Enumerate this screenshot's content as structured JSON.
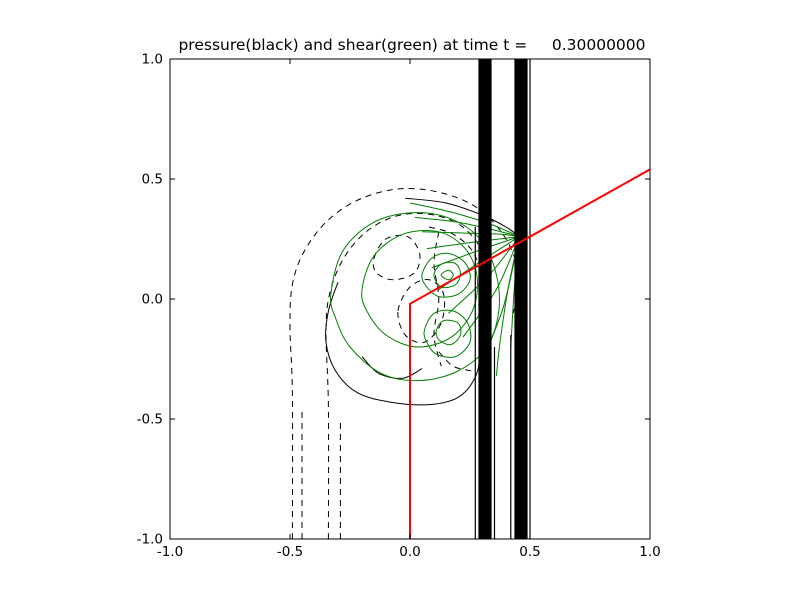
{
  "figure": {
    "background": "#ffffff"
  },
  "chart_data": {
    "type": "contour",
    "title": "pressure(black) and shear(green) at time t =     0.30000000",
    "xlabel": "",
    "ylabel": "",
    "xlim": [
      -1.0,
      1.0
    ],
    "ylim": [
      -1.0,
      1.0
    ],
    "xtick_values": [
      -1.0,
      -0.5,
      0.0,
      0.5,
      1.0
    ],
    "xtick_labels": [
      "-1.0",
      "-0.5",
      "0.0",
      "0.5",
      "1.0"
    ],
    "ytick_values": [
      -1.0,
      -0.5,
      0.0,
      0.5,
      1.0
    ],
    "ytick_labels": [
      "-1.0",
      "-0.5",
      "0.0",
      "0.5",
      "1.0"
    ],
    "grid": false,
    "legend": "none",
    "series": [
      {
        "name": "pressure",
        "color": "#000000",
        "style": "solid and dashed black contour lines"
      },
      {
        "name": "shear",
        "color": "#008000",
        "style": "solid green contour lines"
      }
    ],
    "interface_line": {
      "name": "red-interface-line",
      "color": "#ff0000",
      "width": 2,
      "points": [
        [
          0.0,
          -1.0
        ],
        [
          0.0,
          -0.02
        ],
        [
          1.0,
          0.54
        ]
      ]
    },
    "shock_bands": [
      {
        "x0": 0.285,
        "x1": 0.34,
        "y0": -1.0,
        "y1": 1.0
      },
      {
        "x0": 0.435,
        "x1": 0.49,
        "y0": -1.0,
        "y1": 1.0
      }
    ],
    "shock_lines": [
      {
        "x": 0.272,
        "y0": -1.0,
        "y1": 0.3
      },
      {
        "x": 0.352,
        "y0": -1.0,
        "y1": -0.2
      },
      {
        "x": 0.42,
        "y0": -1.0,
        "y1": -0.15
      },
      {
        "x": 0.5,
        "y0": -1.0,
        "y1": 1.0
      }
    ],
    "contours": [
      {
        "series": "pressure",
        "dash": true,
        "closed": false,
        "pts": [
          [
            -0.49,
            -1.0
          ],
          [
            -0.49,
            -0.4
          ],
          [
            -0.5,
            -0.12
          ],
          [
            -0.49,
            0.06
          ],
          [
            -0.44,
            0.2
          ],
          [
            -0.34,
            0.33
          ],
          [
            -0.2,
            0.42
          ],
          [
            -0.03,
            0.46
          ],
          [
            0.14,
            0.44
          ],
          [
            0.28,
            0.38
          ],
          [
            0.38,
            0.28
          ],
          [
            0.44,
            0.16
          ],
          [
            0.45,
            0.04
          ],
          [
            0.43,
            -0.06
          ]
        ]
      },
      {
        "series": "pressure",
        "dash": true,
        "closed": false,
        "pts": [
          [
            -0.45,
            -1.0
          ],
          [
            -0.45,
            -0.45
          ]
        ]
      },
      {
        "series": "pressure",
        "dash": true,
        "closed": false,
        "pts": [
          [
            -0.34,
            -1.0
          ],
          [
            -0.34,
            -0.45
          ],
          [
            -0.35,
            -0.12
          ],
          [
            -0.33,
            0.04
          ],
          [
            -0.27,
            0.18
          ],
          [
            -0.17,
            0.29
          ],
          [
            -0.04,
            0.35
          ],
          [
            0.1,
            0.35
          ],
          [
            0.22,
            0.3
          ],
          [
            0.3,
            0.2
          ],
          [
            0.33,
            0.08
          ],
          [
            0.32,
            -0.03
          ]
        ]
      },
      {
        "series": "pressure",
        "dash": true,
        "closed": false,
        "pts": [
          [
            -0.29,
            -1.0
          ],
          [
            -0.29,
            -0.5
          ]
        ]
      },
      {
        "series": "pressure",
        "dash": false,
        "closed": false,
        "pts": [
          [
            -0.3,
            0.07
          ],
          [
            -0.34,
            -0.05
          ],
          [
            -0.35,
            -0.18
          ],
          [
            -0.31,
            -0.3
          ],
          [
            -0.22,
            -0.39
          ],
          [
            -0.08,
            -0.43
          ],
          [
            0.08,
            -0.44
          ],
          [
            0.2,
            -0.41
          ],
          [
            0.27,
            -0.33
          ],
          [
            0.295,
            -0.22
          ],
          [
            0.3,
            -0.1
          ]
        ]
      },
      {
        "series": "pressure",
        "dash": false,
        "closed": false,
        "pts": [
          [
            -0.02,
            0.42
          ],
          [
            0.15,
            0.4
          ],
          [
            0.3,
            0.35
          ],
          [
            0.4,
            0.3
          ],
          [
            0.455,
            0.26
          ]
        ]
      },
      {
        "series": "pressure",
        "dash": false,
        "closed": false,
        "pts": [
          [
            -0.2,
            -0.24
          ],
          [
            -0.13,
            -0.31
          ],
          [
            -0.03,
            -0.33
          ],
          [
            0.05,
            -0.29
          ]
        ]
      },
      {
        "series": "pressure",
        "dash": true,
        "closed": true,
        "pts": [
          [
            -0.15,
            0.17
          ],
          [
            -0.1,
            0.25
          ],
          [
            -0.01,
            0.26
          ],
          [
            0.04,
            0.19
          ],
          [
            0.02,
            0.11
          ],
          [
            -0.07,
            0.08
          ],
          [
            -0.14,
            0.11
          ]
        ]
      },
      {
        "series": "pressure",
        "dash": true,
        "closed": true,
        "pts": [
          [
            -0.05,
            -0.05
          ],
          [
            0.0,
            0.05
          ],
          [
            0.08,
            0.08
          ],
          [
            0.14,
            0.02
          ],
          [
            0.13,
            -0.1
          ],
          [
            0.06,
            -0.18
          ],
          [
            -0.02,
            -0.15
          ]
        ]
      },
      {
        "series": "pressure",
        "dash": true,
        "closed": false,
        "pts": [
          [
            0.08,
            0.3
          ],
          [
            0.18,
            0.27
          ],
          [
            0.26,
            0.2
          ],
          [
            0.3,
            0.1
          ]
        ]
      },
      {
        "series": "pressure",
        "dash": true,
        "closed": false,
        "pts": [
          [
            0.12,
            -0.22
          ],
          [
            0.18,
            -0.28
          ],
          [
            0.26,
            -0.3
          ]
        ]
      },
      {
        "series": "pressure",
        "dash": true,
        "closed": false,
        "pts": [
          [
            0.12,
            0.28
          ],
          [
            0.1,
            0.15
          ],
          [
            0.12,
            0.0
          ],
          [
            0.1,
            -0.15
          ],
          [
            0.13,
            -0.28
          ]
        ]
      },
      {
        "series": "shear",
        "dash": false,
        "closed": true,
        "pts": [
          [
            -0.33,
            0.02
          ],
          [
            -0.28,
            0.2
          ],
          [
            -0.15,
            0.32
          ],
          [
            0.02,
            0.36
          ],
          [
            0.18,
            0.33
          ],
          [
            0.3,
            0.24
          ],
          [
            0.36,
            0.1
          ],
          [
            0.37,
            -0.05
          ],
          [
            0.32,
            -0.2
          ],
          [
            0.2,
            -0.3
          ],
          [
            0.04,
            -0.34
          ],
          [
            -0.12,
            -0.31
          ],
          [
            -0.25,
            -0.2
          ],
          [
            -0.31,
            -0.08
          ]
        ]
      },
      {
        "series": "shear",
        "dash": false,
        "closed": true,
        "pts": [
          [
            -0.2,
            0.04
          ],
          [
            -0.15,
            0.18
          ],
          [
            -0.03,
            0.27
          ],
          [
            0.12,
            0.28
          ],
          [
            0.23,
            0.21
          ],
          [
            0.28,
            0.09
          ],
          [
            0.26,
            -0.05
          ],
          [
            0.17,
            -0.16
          ],
          [
            0.03,
            -0.2
          ],
          [
            -0.1,
            -0.15
          ],
          [
            -0.18,
            -0.05
          ]
        ]
      },
      {
        "series": "shear",
        "dash": false,
        "closed": true,
        "pts": [
          [
            0.05,
            0.1
          ],
          [
            0.09,
            0.17
          ],
          [
            0.16,
            0.19
          ],
          [
            0.23,
            0.15
          ],
          [
            0.25,
            0.08
          ],
          [
            0.2,
            0.02
          ],
          [
            0.12,
            0.01
          ],
          [
            0.07,
            0.05
          ]
        ]
      },
      {
        "series": "shear",
        "dash": false,
        "closed": true,
        "pts": [
          [
            0.1,
            0.1
          ],
          [
            0.13,
            0.145
          ],
          [
            0.185,
            0.15
          ],
          [
            0.21,
            0.11
          ],
          [
            0.19,
            0.06
          ],
          [
            0.13,
            0.05
          ]
        ]
      },
      {
        "series": "shear",
        "dash": false,
        "closed": true,
        "pts": [
          [
            0.13,
            0.1
          ],
          [
            0.16,
            0.12
          ],
          [
            0.18,
            0.1
          ],
          [
            0.16,
            0.08
          ]
        ]
      },
      {
        "series": "shear",
        "dash": false,
        "closed": true,
        "pts": [
          [
            0.06,
            -0.13
          ],
          [
            0.1,
            -0.06
          ],
          [
            0.18,
            -0.05
          ],
          [
            0.24,
            -0.1
          ],
          [
            0.25,
            -0.18
          ],
          [
            0.19,
            -0.24
          ],
          [
            0.11,
            -0.23
          ],
          [
            0.07,
            -0.18
          ]
        ]
      },
      {
        "series": "shear",
        "dash": false,
        "closed": true,
        "pts": [
          [
            0.11,
            -0.13
          ],
          [
            0.14,
            -0.09
          ],
          [
            0.2,
            -0.1
          ],
          [
            0.21,
            -0.15
          ],
          [
            0.17,
            -0.19
          ],
          [
            0.12,
            -0.17
          ]
        ]
      },
      {
        "series": "shear",
        "dash": false,
        "closed": false,
        "pts": [
          [
            0.0,
            0.4
          ],
          [
            0.18,
            0.36
          ],
          [
            0.34,
            0.31
          ],
          [
            0.455,
            0.26
          ]
        ]
      },
      {
        "series": "shear",
        "dash": false,
        "closed": false,
        "pts": [
          [
            0.02,
            0.34
          ],
          [
            0.2,
            0.32
          ],
          [
            0.36,
            0.285
          ],
          [
            0.455,
            0.26
          ]
        ]
      },
      {
        "series": "shear",
        "dash": false,
        "closed": false,
        "pts": [
          [
            0.05,
            0.28
          ],
          [
            0.22,
            0.275
          ],
          [
            0.38,
            0.27
          ],
          [
            0.455,
            0.26
          ]
        ]
      },
      {
        "series": "shear",
        "dash": false,
        "closed": false,
        "pts": [
          [
            0.07,
            0.21
          ],
          [
            0.25,
            0.235
          ],
          [
            0.455,
            0.26
          ]
        ]
      },
      {
        "series": "shear",
        "dash": false,
        "closed": false,
        "pts": [
          [
            0.09,
            0.13
          ],
          [
            0.28,
            0.2
          ],
          [
            0.455,
            0.26
          ]
        ]
      },
      {
        "series": "shear",
        "dash": false,
        "closed": false,
        "pts": [
          [
            0.12,
            0.04
          ],
          [
            0.3,
            0.16
          ],
          [
            0.455,
            0.26
          ]
        ]
      },
      {
        "series": "shear",
        "dash": false,
        "closed": false,
        "pts": [
          [
            0.16,
            -0.06
          ],
          [
            0.33,
            0.1
          ],
          [
            0.455,
            0.26
          ]
        ]
      },
      {
        "series": "shear",
        "dash": false,
        "closed": false,
        "pts": [
          [
            0.22,
            -0.16
          ],
          [
            0.36,
            0.04
          ],
          [
            0.455,
            0.26
          ]
        ]
      },
      {
        "series": "shear",
        "dash": false,
        "closed": false,
        "pts": [
          [
            0.3,
            -0.26
          ],
          [
            0.39,
            -0.03
          ],
          [
            0.455,
            0.26
          ]
        ]
      },
      {
        "series": "shear",
        "dash": false,
        "closed": false,
        "pts": [
          [
            0.455,
            0.26
          ],
          [
            0.41,
            0.05
          ],
          [
            0.375,
            -0.18
          ],
          [
            0.36,
            -0.32
          ]
        ]
      },
      {
        "series": "shear",
        "dash": false,
        "closed": false,
        "pts": [
          [
            0.455,
            0.26
          ],
          [
            0.435,
            0.05
          ],
          [
            0.42,
            -0.2
          ]
        ]
      }
    ]
  }
}
